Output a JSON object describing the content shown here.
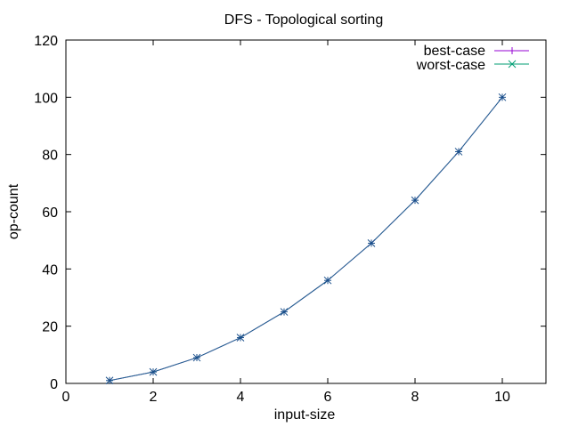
{
  "chart_data": {
    "type": "line",
    "title": "DFS - Topological sorting",
    "xlabel": "input-size",
    "ylabel": "op-count",
    "xlim": [
      0,
      11
    ],
    "ylim": [
      0,
      120
    ],
    "xticks": [
      0,
      2,
      4,
      6,
      8,
      10
    ],
    "yticks": [
      0,
      20,
      40,
      60,
      80,
      100,
      120
    ],
    "grid": false,
    "legend_position": "top-right",
    "x": [
      1,
      2,
      3,
      4,
      5,
      6,
      7,
      8,
      9,
      10
    ],
    "series": [
      {
        "name": "best-case",
        "values": [
          1,
          4,
          9,
          16,
          25,
          36,
          49,
          64,
          81,
          100
        ],
        "color": "#9400d3",
        "marker": "plus"
      },
      {
        "name": "worst-case",
        "values": [
          1,
          4,
          9,
          16,
          25,
          36,
          49,
          64,
          81,
          100
        ],
        "color": "#009e73",
        "marker": "cross"
      }
    ],
    "overlap_color": "#1a4f8b"
  }
}
